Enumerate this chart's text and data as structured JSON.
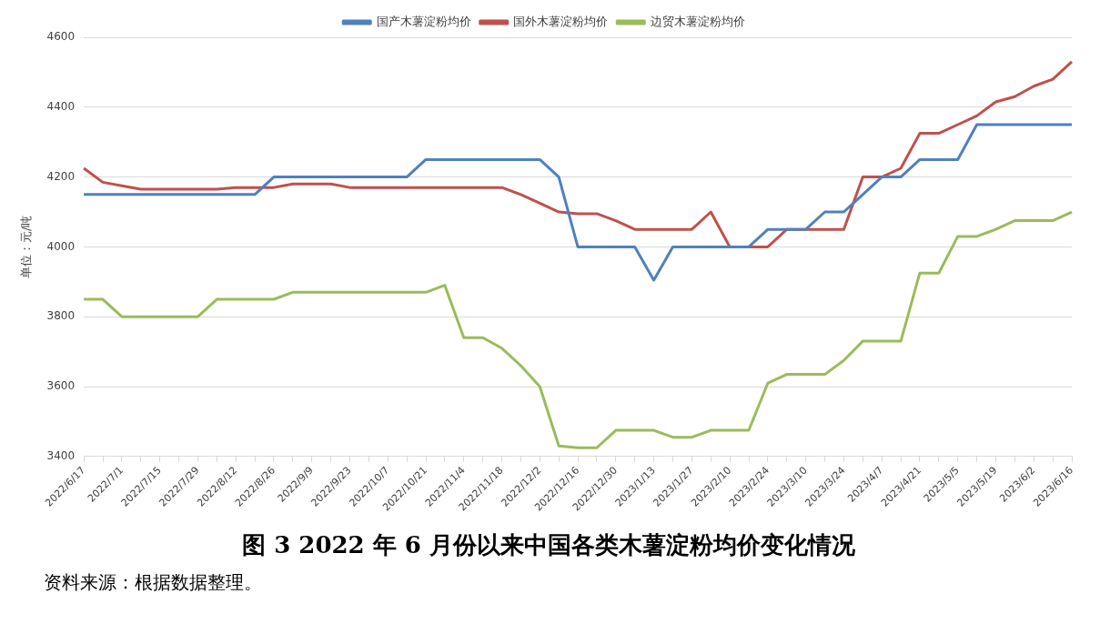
{
  "chart_data": {
    "type": "line",
    "title": "图 3   2022 年 6 月份以来中国各类木薯淀粉均价变化情况",
    "ylabel": "单位：元/吨",
    "annotations": [
      "资料来源：根据数据整理。"
    ],
    "categories": [
      "2022/6/17",
      null,
      "2022/7/1",
      null,
      "2022/7/15",
      null,
      "2022/7/29",
      null,
      "2022/8/12",
      null,
      "2022/8/26",
      null,
      "2022/9/9",
      null,
      "2022/9/23",
      null,
      "2022/10/7",
      null,
      "2022/10/21",
      null,
      "2022/11/4",
      null,
      "2022/11/18",
      null,
      "2022/12/2",
      null,
      "2022/12/16",
      null,
      "2022/12/30",
      null,
      "2023/1/13",
      null,
      "2023/1/27",
      null,
      "2023/2/10",
      null,
      "2023/2/24",
      null,
      "2023/3/10",
      null,
      "2023/3/24",
      null,
      "2023/4/7",
      null,
      "2023/4/21",
      null,
      "2023/5/5",
      null,
      "2023/5/19",
      null,
      "2023/6/2",
      null,
      "2023/6/16"
    ],
    "series": [
      {
        "name": "国产木薯淀粉均价",
        "color": "#4f81bd",
        "values": [
          4150,
          4150,
          4150,
          4150,
          4150,
          4150,
          4150,
          4150,
          4150,
          4150,
          4200,
          4200,
          4200,
          4200,
          4200,
          4200,
          4200,
          4200,
          4250,
          4250,
          4250,
          4250,
          4250,
          4250,
          4250,
          4200,
          4000,
          4000,
          4000,
          4000,
          3905,
          4000,
          4000,
          4000,
          4000,
          4000,
          4050,
          4050,
          4050,
          4100,
          4100,
          4150,
          4200,
          4200,
          4250,
          4250,
          4250,
          4350,
          4350,
          4350,
          4350,
          4350,
          4350
        ]
      },
      {
        "name": "国外木薯淀粉均价",
        "color": "#c0504d",
        "values": [
          4225,
          4185,
          4175,
          4165,
          4165,
          4165,
          4165,
          4165,
          4170,
          4170,
          4170,
          4180,
          4180,
          4180,
          4170,
          4170,
          4170,
          4170,
          4170,
          4170,
          4170,
          4170,
          4170,
          4150,
          4125,
          4100,
          4095,
          4095,
          4075,
          4050,
          4050,
          4050,
          4050,
          4100,
          4000,
          4000,
          4000,
          4050,
          4050,
          4050,
          4050,
          4200,
          4200,
          4225,
          4325,
          4325,
          4350,
          4375,
          4415,
          4430,
          4460,
          4480,
          4530
        ]
      },
      {
        "name": "边贸木薯淀粉均价",
        "color": "#9bbb59",
        "values": [
          3850,
          3850,
          3800,
          3800,
          3800,
          3800,
          3800,
          3850,
          3850,
          3850,
          3850,
          3870,
          3870,
          3870,
          3870,
          3870,
          3870,
          3870,
          3870,
          3890,
          3740,
          3740,
          3710,
          3660,
          3600,
          3430,
          3425,
          3425,
          3475,
          3475,
          3475,
          3455,
          3455,
          3475,
          3475,
          3475,
          3610,
          3635,
          3635,
          3635,
          3675,
          3730,
          3730,
          3730,
          3925,
          3925,
          4030,
          4030,
          4050,
          4075,
          4075,
          4075,
          4100
        ]
      }
    ],
    "ylim": [
      3400,
      4600
    ],
    "yticks": [
      3400,
      3600,
      3800,
      4000,
      4200,
      4400,
      4600
    ],
    "grid": "y",
    "legend": "top",
    "marker": "none",
    "line_style": "solid"
  }
}
